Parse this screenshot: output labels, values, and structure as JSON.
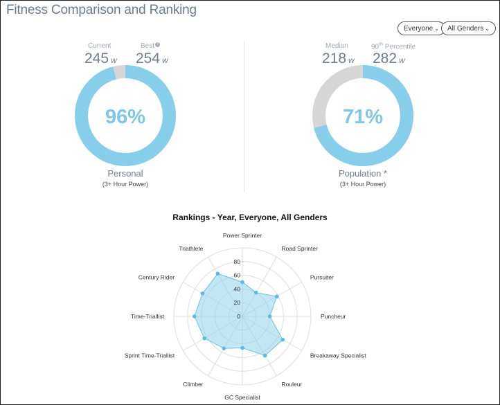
{
  "header": {
    "title": "Fitness Comparison and Ranking"
  },
  "filters": {
    "everyone": "Everyone",
    "gender": "All Genders"
  },
  "personal": {
    "current_label": "Current",
    "current_value": "245",
    "current_unit": "w",
    "best_label": "Best",
    "best_value": "254",
    "best_unit": "w",
    "percent": "96%",
    "percent_fraction": 0.96,
    "caption": "Personal",
    "subcaption": "(3+ Hour Power)"
  },
  "population": {
    "median_label": "Median",
    "median_value": "218",
    "median_unit": "w",
    "pct90_label_prefix": "90",
    "pct90_label_sup": "th",
    "pct90_label_suffix": " Percentile",
    "pct90_value": "282",
    "pct90_unit": "w",
    "percent": "71%",
    "percent_fraction": 0.71,
    "caption": "Population *",
    "subcaption": "(3+ Hour Power)"
  },
  "colors": {
    "accent": "#87ceeb",
    "track": "#d6d6d6",
    "radar_fill": "#87ceeb"
  },
  "chart_data": {
    "type": "radar",
    "title": "Rankings - Year, Everyone, All Genders",
    "categories": [
      "Power Sprinter",
      "Road Sprinter",
      "Pursuiter",
      "Puncheur",
      "Breakaway Specialist",
      "Rouleur",
      "GC Specialist",
      "Climber",
      "Sprint Time-Triallist",
      "Time-Triallist",
      "Century Rider",
      "Triathlete"
    ],
    "values": [
      50,
      40,
      58,
      40,
      68,
      66,
      46,
      54,
      64,
      70,
      67,
      72
    ],
    "ticks": [
      "0",
      "20",
      "40",
      "60",
      "80"
    ],
    "rmax": 100
  }
}
